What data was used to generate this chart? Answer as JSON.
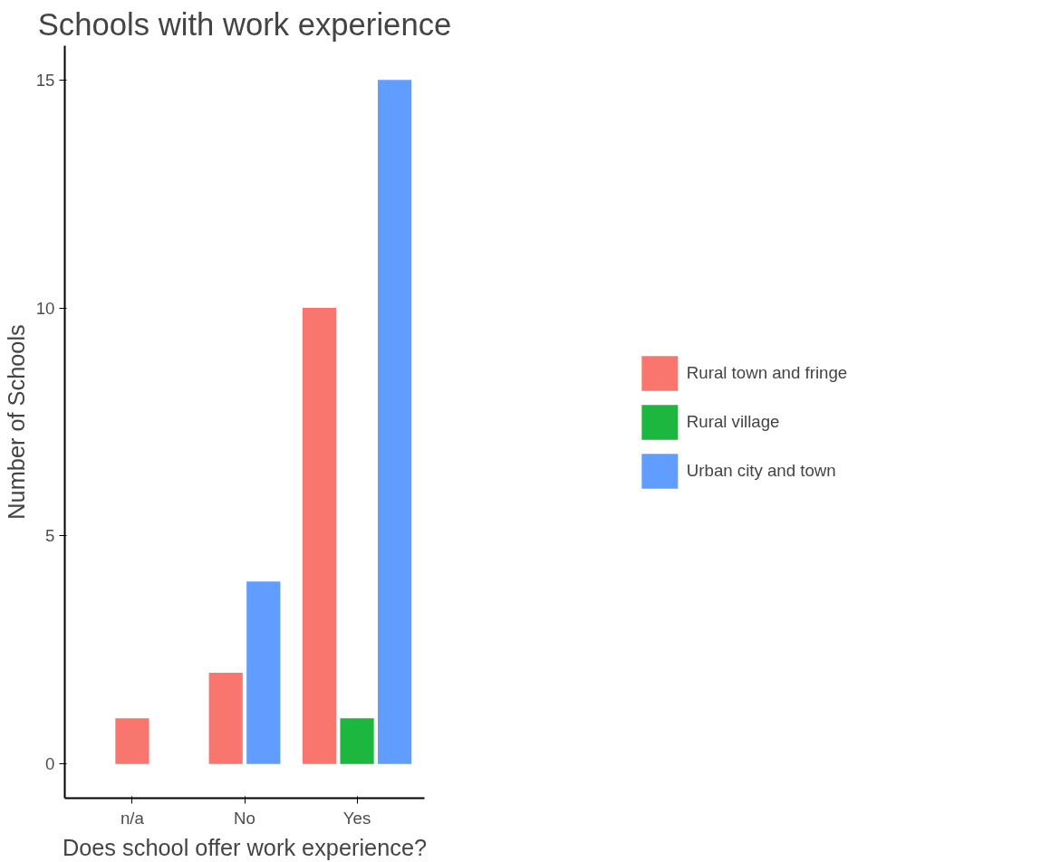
{
  "chart_data": {
    "type": "bar",
    "title": "Schools with work experience",
    "xlabel": "Does school offer work experience?",
    "ylabel": "Number of Schools",
    "categories": [
      "n/a",
      "No",
      "Yes"
    ],
    "series": [
      {
        "name": "Rural town and fringe",
        "color": "#f8766d",
        "values": [
          1,
          2,
          10
        ]
      },
      {
        "name": "Rural village",
        "color": "#1db73f",
        "values": [
          null,
          null,
          1
        ]
      },
      {
        "name": "Urban city and town",
        "color": "#619cff",
        "values": [
          null,
          4,
          15
        ]
      }
    ],
    "ylim": [
      -0.75,
      15.75
    ],
    "yticks": [
      0,
      5,
      10,
      15
    ],
    "grid": false,
    "legend": "right"
  }
}
